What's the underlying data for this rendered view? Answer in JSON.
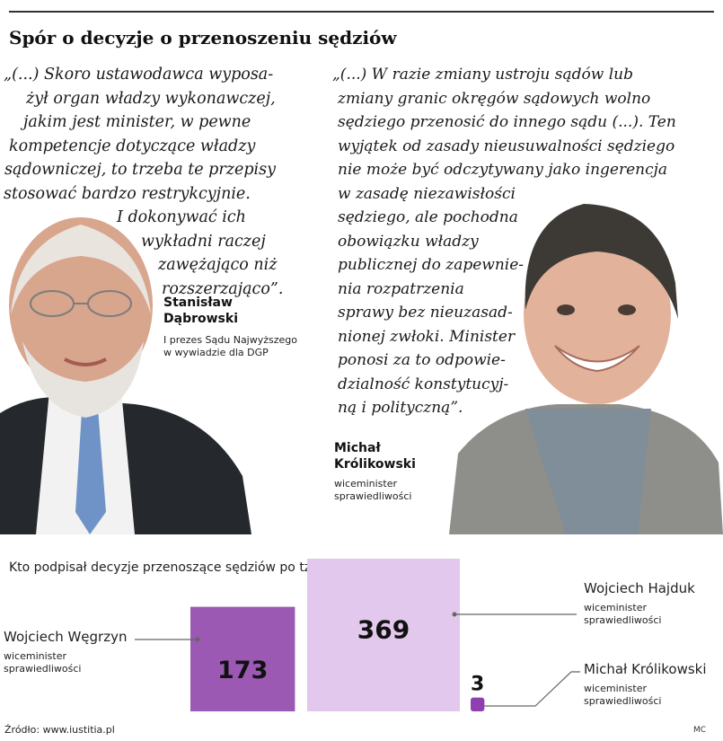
{
  "headline": "Spór o decyzje o przenoszeniu sędziów",
  "quote_left": {
    "lines": [
      "„(...) Skoro ustawodawca wyposa-",
      "żył organ władzy wykonawczej,",
      "jakim jest minister, w pewne",
      "kompetencje dotyczące władzy",
      "sądowniczej, to trzeba te przepisy",
      "stosować bardzo restrykcyjnie.",
      "I dokonywać ich",
      "wykładni raczej",
      "zawężająco niż",
      "rozszerzająco”."
    ],
    "name_lines": [
      "Stanisław",
      "Dąbrowski"
    ],
    "role_lines": [
      "I prezes Sądu Najwyższego",
      "w wywiadzie dla DGP"
    ]
  },
  "quote_right": {
    "lines": [
      "„(...) W razie zmiany ustroju sądów lub",
      "zmiany granic okręgów sądowych wolno",
      "sędziego przenosić do innego sądu (...). Ten",
      "wyjątek od zasady nieusuwalności sędziego",
      "nie może być odczytywany jako ingerencja",
      "w zasadę niezawisłości",
      "sędziego, ale pochodna",
      "obowiązku władzy",
      "publicznej do zapewnie-",
      "nia rozpatrzenia",
      "sprawy bez nieuzasad-",
      "nionej zwłoki. Minister",
      "ponosi za to odpowie-",
      "dzialność konstytucyj-",
      "ną i polityczną”."
    ],
    "name_lines": [
      "Michał",
      "Królikowski"
    ],
    "role_lines": [
      "wiceminister",
      "sprawiedliwości"
    ]
  },
  "chart_data": {
    "type": "bar",
    "title": "Kto podpisał decyzje przenoszące sędziów po tzw. reformie Gowina",
    "categories": [
      "Wojciech Węgrzyn",
      "Wojciech Hajduk",
      "Michał Królikowski"
    ],
    "roles": [
      [
        "wiceminister",
        "sprawiedliwości"
      ],
      [
        "wiceminister",
        "sprawiedliwości"
      ],
      [
        "wiceminister",
        "sprawiedliwości"
      ]
    ],
    "values": [
      173,
      369,
      3
    ],
    "value_labels": [
      "173",
      "369",
      "3"
    ],
    "colors": [
      "#9b59b4",
      "#e2c8ec",
      "#8e3fb0"
    ]
  },
  "source": "Źródło: www.iustitia.pl",
  "author": "MC"
}
